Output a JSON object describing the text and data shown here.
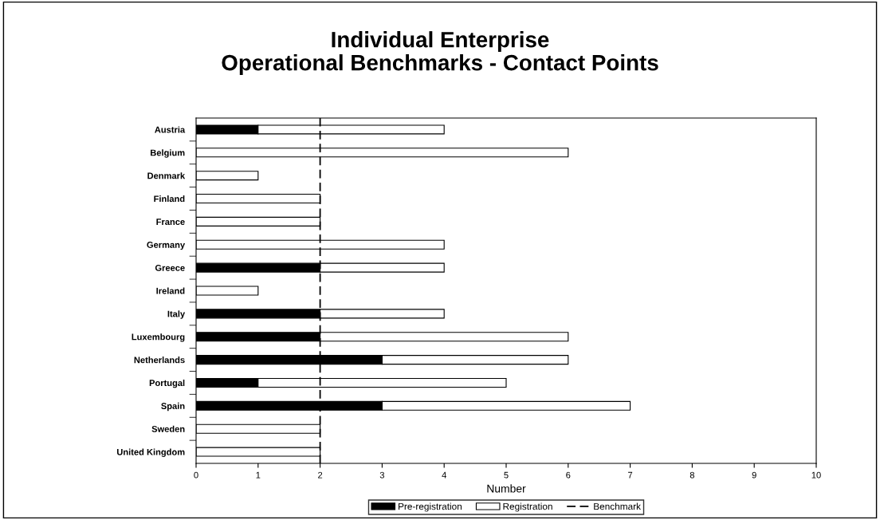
{
  "chart_data": {
    "type": "bar",
    "orientation": "horizontal",
    "stacked": true,
    "title": "Individual Enterprise\nOperational Benchmarks - Contact Points",
    "xlabel": "Number",
    "categories": [
      "Austria",
      "Belgium",
      "Denmark",
      "Finland",
      "France",
      "Germany",
      "Greece",
      "Ireland",
      "Italy",
      "Luxembourg",
      "Netherlands",
      "Portugal",
      "Spain",
      "Sweden",
      "United Kingdom"
    ],
    "series": [
      {
        "name": "Pre-registration",
        "color": "#000000",
        "values": [
          1,
          0,
          0,
          0,
          0,
          0,
          2,
          0,
          2,
          2,
          3,
          1,
          3,
          0,
          0
        ]
      },
      {
        "name": "Registration",
        "color": "#ffffff",
        "values": [
          3,
          6,
          1,
          2,
          2,
          4,
          2,
          1,
          2,
          4,
          3,
          4,
          4,
          2,
          2
        ]
      }
    ],
    "ref_lines": [
      {
        "axis": "x",
        "value": 2,
        "label": "Benchmark",
        "color": "#000000",
        "line_style": "dashed"
      }
    ],
    "xlim": [
      0,
      10
    ],
    "xticks": [
      0,
      1,
      2,
      3,
      4,
      5,
      6,
      7,
      8,
      9,
      10
    ],
    "grid": false,
    "legend": "bottom"
  }
}
